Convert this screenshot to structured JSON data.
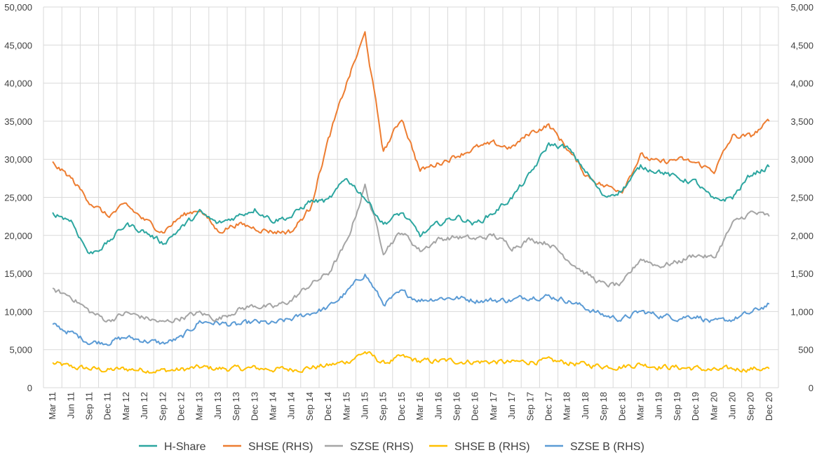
{
  "chart_data": {
    "type": "line",
    "title": "",
    "legend_position": "bottom",
    "x": [
      "Mar 11",
      "Jun 11",
      "Sep 11",
      "Dec 11",
      "Mar 12",
      "Jun 12",
      "Sep 12",
      "Dec 12",
      "Mar 13",
      "Jun 13",
      "Sep 13",
      "Dec 13",
      "Mar 14",
      "Jun 14",
      "Sep 14",
      "Dec 14",
      "Mar 15",
      "Jun 15",
      "Sep 15",
      "Dec 15",
      "Mar 16",
      "Jun 16",
      "Sep 16",
      "Dec 16",
      "Mar 17",
      "Jun 17",
      "Sep 17",
      "Dec 17",
      "Mar 18",
      "Jun 18",
      "Sep 18",
      "Dec 18",
      "Mar 19",
      "Jun 19",
      "Sep 19",
      "Dec 19",
      "Mar 20",
      "Jun 20",
      "Sep 20",
      "Dec 20"
    ],
    "y_left": {
      "range": [
        0,
        50000
      ],
      "ticks": [
        "0",
        "5,000",
        "10,000",
        "15,000",
        "20,000",
        "25,000",
        "30,000",
        "35,000",
        "40,000",
        "45,000",
        "50,000"
      ]
    },
    "y_right": {
      "range": [
        0,
        5000
      ],
      "ticks": [
        "0",
        "500",
        "1,000",
        "1,500",
        "2,000",
        "2,500",
        "3,000",
        "3,500",
        "4,000",
        "4,500",
        "5,000"
      ]
    },
    "grid": true,
    "series": [
      {
        "name": "H-Share",
        "axis": "left",
        "color": "#2ca6a0",
        "values": [
          23000,
          22000,
          17500,
          19000,
          21500,
          20500,
          19000,
          21000,
          23000,
          21500,
          22500,
          23500,
          22000,
          22500,
          24500,
          24500,
          27500,
          25000,
          21500,
          23000,
          20000,
          21500,
          22500,
          21500,
          23000,
          25000,
          28000,
          32000,
          31500,
          28500,
          25000,
          26000,
          29000,
          28500,
          27500,
          27000,
          24500,
          25000,
          28000,
          29000
        ]
      },
      {
        "name": "SHSE (RHS)",
        "axis": "right",
        "color": "#ed7d31",
        "values": [
          2950,
          2750,
          2450,
          2250,
          2400,
          2200,
          2050,
          2250,
          2350,
          2050,
          2150,
          2100,
          2050,
          2050,
          2350,
          3250,
          4000,
          4650,
          3100,
          3550,
          2850,
          2950,
          3050,
          3150,
          3200,
          3150,
          3350,
          3450,
          3150,
          2800,
          2650,
          2600,
          3050,
          2950,
          3000,
          2950,
          2850,
          3300,
          3300,
          3500
        ]
      },
      {
        "name": "SZSE (RHS)",
        "axis": "right",
        "color": "#a5a5a5",
        "values": [
          1280,
          1200,
          1000,
          880,
          980,
          920,
          850,
          920,
          980,
          900,
          1020,
          1080,
          1050,
          1150,
          1350,
          1500,
          1900,
          2650,
          1800,
          2050,
          1800,
          1950,
          1980,
          1950,
          2000,
          1850,
          1950,
          1900,
          1700,
          1500,
          1350,
          1350,
          1700,
          1600,
          1650,
          1750,
          1700,
          2150,
          2300,
          2250
        ]
      },
      {
        "name": "SHSE B (RHS)",
        "axis": "right",
        "color": "#ffc000",
        "values": [
          320,
          270,
          250,
          230,
          245,
          235,
          225,
          235,
          265,
          250,
          250,
          255,
          245,
          240,
          265,
          290,
          340,
          470,
          320,
          400,
          345,
          350,
          350,
          340,
          340,
          330,
          345,
          350,
          330,
          300,
          285,
          280,
          310,
          280,
          265,
          255,
          225,
          245,
          250,
          250
        ]
      },
      {
        "name": "SZSE B (RHS)",
        "axis": "right",
        "color": "#5b9bd5",
        "values": [
          820,
          720,
          600,
          600,
          660,
          620,
          580,
          650,
          870,
          850,
          820,
          860,
          840,
          900,
          980,
          1050,
          1250,
          1500,
          1100,
          1250,
          1150,
          1180,
          1180,
          1150,
          1150,
          1150,
          1200,
          1200,
          1150,
          1050,
          950,
          900,
          1000,
          950,
          920,
          950,
          850,
          900,
          980,
          1100
        ]
      }
    ]
  }
}
